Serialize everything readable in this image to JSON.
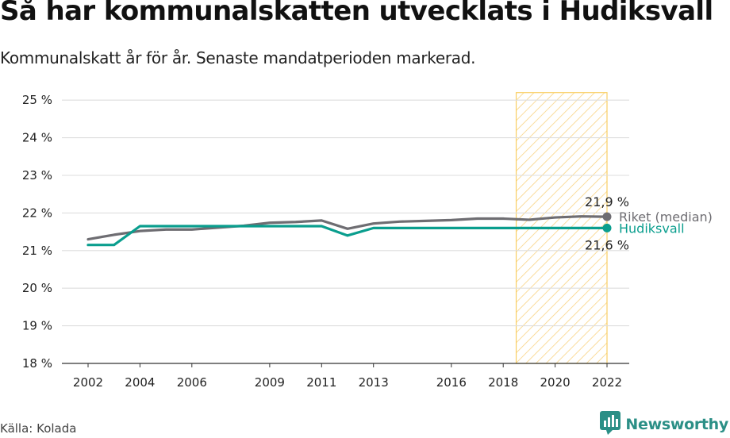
{
  "header": {
    "title": "Så har kommunalskatten utvecklats i Hudiksvall",
    "subtitle": "Kommunalskatt år för år. Senaste mandatperioden markerad."
  },
  "footer": {
    "source": "Källa: Kolada",
    "brand": "Newsworthy"
  },
  "colors": {
    "riket": "#6e6d72",
    "hudiksvall": "#0a9e8e",
    "highlight_fill": "#fde3a7",
    "highlight_border": "#f9cf63",
    "grid": "#dedede"
  },
  "chart_data": {
    "type": "line",
    "title": "Så har kommunalskatten utvecklats i Hudiksvall",
    "subtitle": "Kommunalskatt år för år. Senaste mandatperioden markerad.",
    "xlabel": "",
    "ylabel": "",
    "x_ticks": [
      2002,
      2004,
      2006,
      2009,
      2011,
      2013,
      2016,
      2018,
      2020,
      2022
    ],
    "y_ticks": [
      18,
      19,
      20,
      21,
      22,
      23,
      24,
      25
    ],
    "y_tick_labels": [
      "18 %",
      "19 %",
      "20 %",
      "21 %",
      "22 %",
      "23 %",
      "24 %",
      "25 %"
    ],
    "xlim": [
      2001,
      2023
    ],
    "ylim": [
      18,
      25.2
    ],
    "grid": true,
    "highlight_period": [
      2018.5,
      2022
    ],
    "series": [
      {
        "name": "Riket (median)",
        "x": [
          2002,
          2003,
          2004,
          2005,
          2006,
          2007,
          2008,
          2009,
          2010,
          2011,
          2012,
          2013,
          2014,
          2015,
          2016,
          2017,
          2018,
          2019,
          2020,
          2021,
          2022
        ],
        "values": [
          21.3,
          21.42,
          21.52,
          21.56,
          21.56,
          21.61,
          21.66,
          21.74,
          21.76,
          21.8,
          21.58,
          21.72,
          21.77,
          21.79,
          21.81,
          21.85,
          21.85,
          21.82,
          21.88,
          21.91,
          21.9
        ],
        "end_label": "21,9 %"
      },
      {
        "name": "Hudiksvall",
        "x": [
          2002,
          2003,
          2004,
          2005,
          2006,
          2007,
          2008,
          2009,
          2010,
          2011,
          2012,
          2013,
          2014,
          2015,
          2016,
          2017,
          2018,
          2019,
          2020,
          2021,
          2022
        ],
        "values": [
          21.15,
          21.15,
          21.65,
          21.65,
          21.65,
          21.65,
          21.65,
          21.65,
          21.65,
          21.65,
          21.4,
          21.6,
          21.6,
          21.6,
          21.6,
          21.6,
          21.6,
          21.6,
          21.6,
          21.6,
          21.6
        ],
        "end_label": "21,6 %"
      }
    ]
  }
}
